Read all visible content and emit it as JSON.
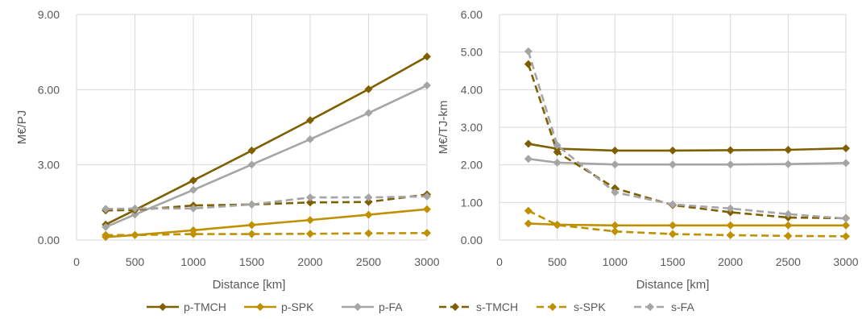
{
  "chart_data": [
    {
      "type": "line",
      "title": "",
      "xlabel": "Distance [km]",
      "ylabel": "M€/PJ",
      "xlim": [
        0,
        3000
      ],
      "ylim": [
        0,
        9
      ],
      "x_ticks": [
        "0",
        "500",
        "1000",
        "1500",
        "2000",
        "2500",
        "3000"
      ],
      "y_ticks": [
        "0.00",
        "3.00",
        "6.00",
        "9.00"
      ],
      "grid": true,
      "x": [
        250,
        500,
        1000,
        1500,
        2000,
        2500,
        3000
      ],
      "series": [
        {
          "name": "p-TMCH",
          "values": [
            0.62,
            1.2,
            2.38,
            3.57,
            4.78,
            6.02,
            7.32
          ]
        },
        {
          "name": "p-SPK",
          "values": [
            0.12,
            0.2,
            0.39,
            0.6,
            0.8,
            1.01,
            1.23
          ]
        },
        {
          "name": "p-FA",
          "values": [
            0.52,
            1.02,
            2.0,
            3.01,
            4.02,
            5.07,
            6.17
          ]
        },
        {
          "name": "s-TMCH",
          "values": [
            1.18,
            1.2,
            1.38,
            1.42,
            1.5,
            1.52,
            1.82
          ]
        },
        {
          "name": "s-SPK",
          "values": [
            0.2,
            0.2,
            0.24,
            0.24,
            0.25,
            0.27,
            0.28
          ]
        },
        {
          "name": "s-FA",
          "values": [
            1.24,
            1.26,
            1.26,
            1.42,
            1.7,
            1.7,
            1.74
          ]
        }
      ]
    },
    {
      "type": "line",
      "title": "",
      "xlabel": "Distance [km]",
      "ylabel": "M€/TJ-km",
      "xlim": [
        0,
        3000
      ],
      "ylim": [
        0,
        6
      ],
      "x_ticks": [
        "0",
        "500",
        "1000",
        "1500",
        "2000",
        "2500",
        "3000"
      ],
      "y_ticks": [
        "0.00",
        "1.00",
        "2.00",
        "3.00",
        "4.00",
        "5.00",
        "6.00"
      ],
      "grid": true,
      "x": [
        250,
        500,
        1000,
        1500,
        2000,
        2500,
        3000
      ],
      "series": [
        {
          "name": "p-TMCH",
          "values": [
            2.56,
            2.43,
            2.38,
            2.38,
            2.39,
            2.4,
            2.44
          ]
        },
        {
          "name": "p-SPK",
          "values": [
            0.44,
            0.41,
            0.39,
            0.39,
            0.39,
            0.39,
            0.39
          ]
        },
        {
          "name": "p-FA",
          "values": [
            2.16,
            2.06,
            2.01,
            2.01,
            2.01,
            2.02,
            2.05
          ]
        },
        {
          "name": "s-TMCH",
          "values": [
            4.68,
            2.34,
            1.38,
            0.93,
            0.74,
            0.6,
            0.58
          ]
        },
        {
          "name": "s-SPK",
          "values": [
            0.78,
            0.4,
            0.23,
            0.16,
            0.13,
            0.11,
            0.1
          ]
        },
        {
          "name": "s-FA",
          "values": [
            5.02,
            2.52,
            1.27,
            0.95,
            0.84,
            0.69,
            0.57
          ]
        }
      ]
    }
  ],
  "legend": {
    "placement": "bottom",
    "items": [
      {
        "label": "p-TMCH",
        "color": "#7f6000",
        "dash": false
      },
      {
        "label": "p-SPK",
        "color": "#bf9000",
        "dash": false
      },
      {
        "label": "p-FA",
        "color": "#a5a5a5",
        "dash": false
      },
      {
        "label": "s-TMCH",
        "color": "#7f6000",
        "dash": true
      },
      {
        "label": "s-SPK",
        "color": "#bf9000",
        "dash": true
      },
      {
        "label": "s-FA",
        "color": "#a5a5a5",
        "dash": true
      }
    ]
  }
}
